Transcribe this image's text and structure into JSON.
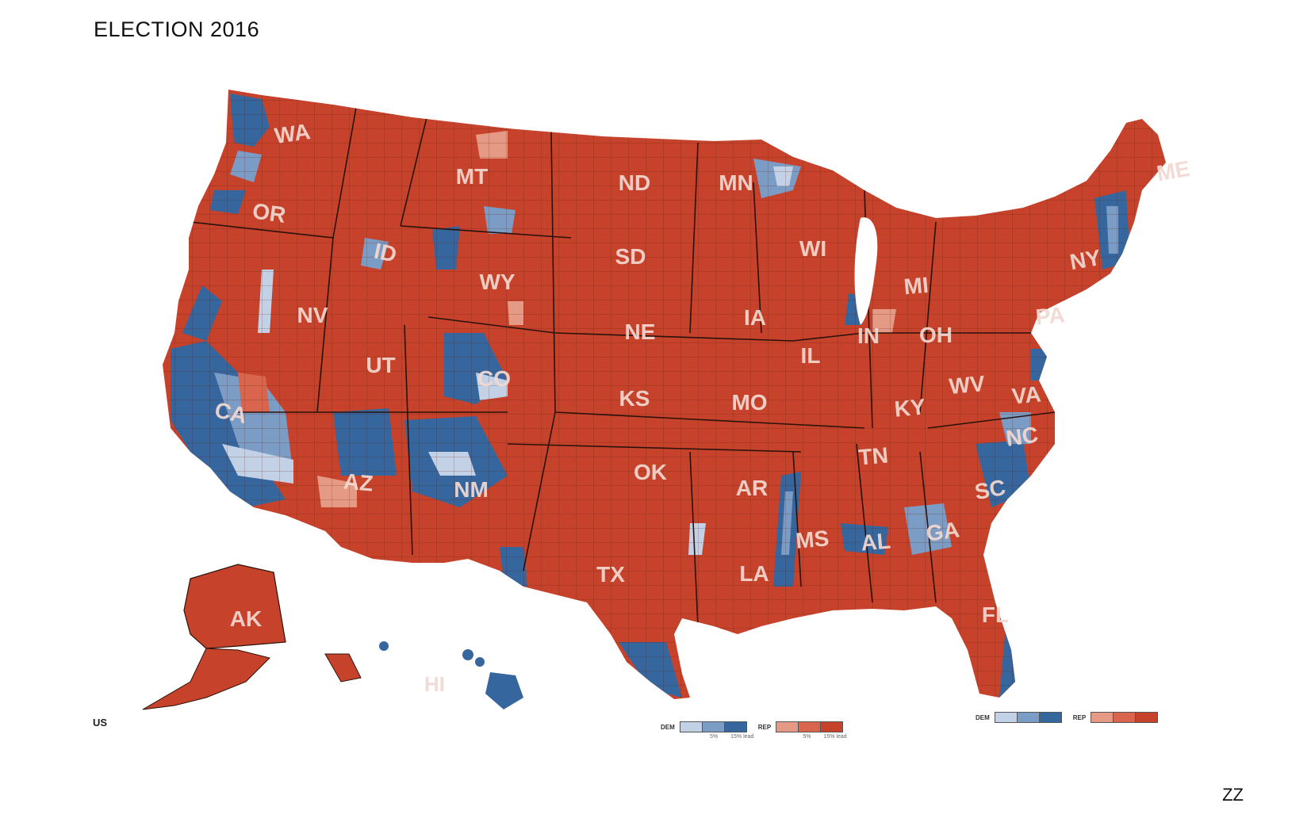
{
  "title": "ELECTION 2016",
  "credit": "ZZ",
  "region_tag": "US",
  "colors": {
    "rep_strong": "#c7422a",
    "rep_mid": "#d9654e",
    "rep_light": "#e59a86",
    "dem_strong": "#35669d",
    "dem_mid": "#7b9cc5",
    "dem_light": "#c3d1e6",
    "border": "#3a1a12"
  },
  "states": [
    "WA",
    "OR",
    "MT",
    "ND",
    "MN",
    "ID",
    "SD",
    "WY",
    "WI",
    "NY",
    "ME",
    "NV",
    "MI",
    "IA",
    "NE",
    "IN",
    "OH",
    "PA",
    "IL",
    "UT",
    "CO",
    "CA",
    "KS",
    "MO",
    "WV",
    "KY",
    "VA",
    "NC",
    "TN",
    "OK",
    "AZ",
    "NM",
    "AR",
    "SC",
    "MS",
    "AL",
    "GA",
    "TX",
    "LA",
    "FL",
    "AK",
    "HI"
  ],
  "legend": {
    "dem_label": "DEM",
    "rep_label": "REP",
    "tick_5": "5%",
    "tick_15": "15% lead"
  }
}
